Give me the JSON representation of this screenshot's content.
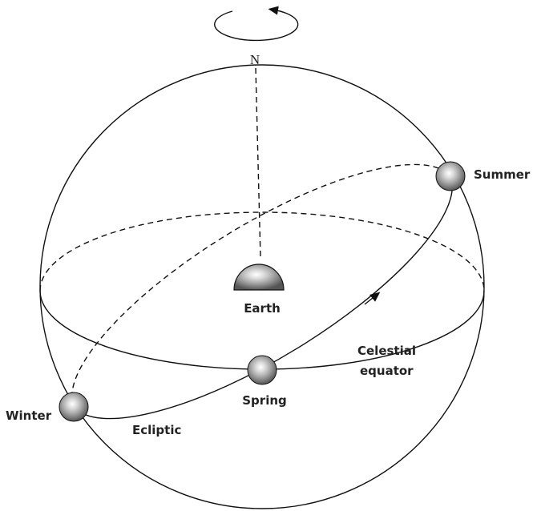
{
  "labels": {
    "north": "N",
    "earth": "Earth",
    "summer": "Summer",
    "winter": "Winter",
    "spring": "Spring",
    "ecliptic": "Ecliptic",
    "celestial_equator": [
      "Celestial",
      "equator"
    ]
  }
}
